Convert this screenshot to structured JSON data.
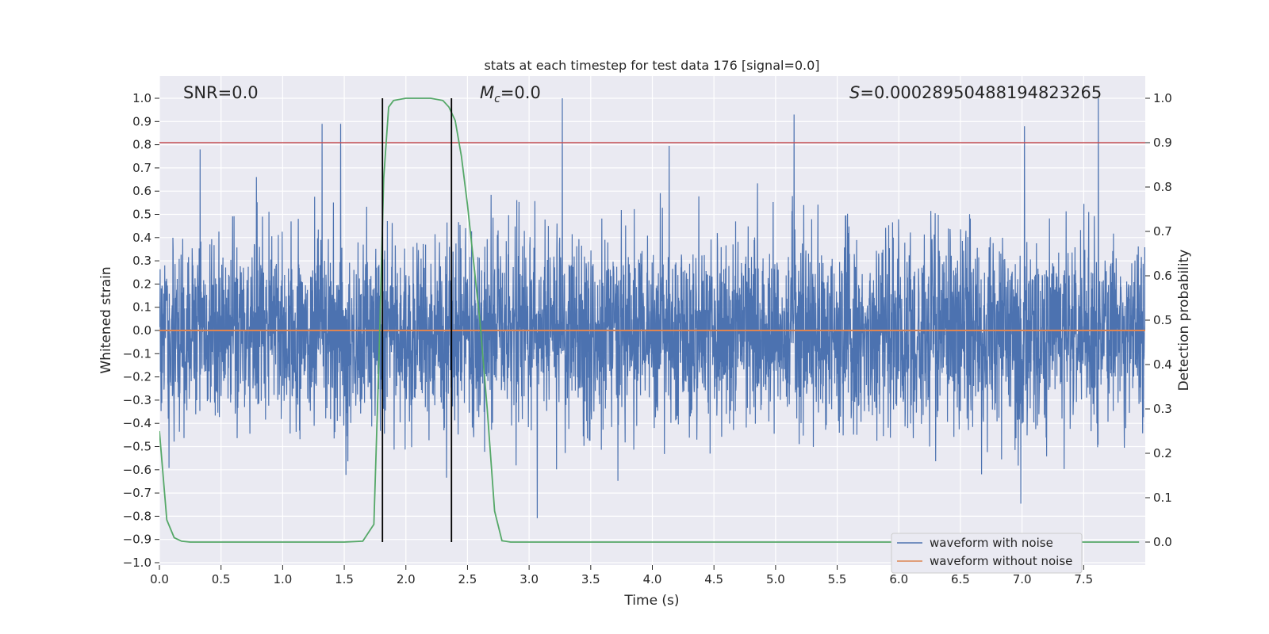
{
  "chart_data": {
    "type": "line",
    "title": "stats at each timestep for test data 176 [signal=0.0]",
    "xlabel": "Time (s)",
    "ylabel": "Whitened strain",
    "ylabel_right": "Detection probability",
    "xlim": [
      0.0,
      8.0
    ],
    "ylim": [
      -1.0,
      1.0
    ],
    "ylim_right": [
      -0.04,
      1.04
    ],
    "xticks": [
      "0.0",
      "0.5",
      "1.0",
      "1.5",
      "2.0",
      "2.5",
      "3.0",
      "3.5",
      "4.0",
      "4.5",
      "5.0",
      "5.5",
      "6.0",
      "6.5",
      "7.0",
      "7.5"
    ],
    "yticks": [
      "1.0",
      "0.9",
      "0.8",
      "0.7",
      "0.6",
      "0.5",
      "0.4",
      "0.3",
      "0.2",
      "0.1",
      "0.0",
      "−0.1",
      "−0.2",
      "−0.3",
      "−0.4",
      "−0.5",
      "−0.6",
      "−0.7",
      "−0.8",
      "−0.9",
      "−1.0"
    ],
    "yticks_right": [
      "1.0",
      "0.9",
      "0.8",
      "0.7",
      "0.6",
      "0.5",
      "0.4",
      "0.3",
      "0.2",
      "0.1",
      "0.0"
    ],
    "annotations": {
      "snr": "SNR=0.0",
      "mc_symbol": "M",
      "mc_sub": "c",
      "mc_value": "=0.0",
      "s_symbol": "S",
      "s_value": "=0.00028950488194823265"
    },
    "threshold": {
      "value_right": 0.9,
      "color": "#c44e52"
    },
    "vertical_lines": [
      1.81,
      2.37
    ],
    "series": [
      {
        "name": "waveform with noise",
        "color": "#4c72b0",
        "kind": "noise",
        "samples": 4096,
        "peak_times": [
          0.33,
          1.32,
          1.47,
          3.27,
          5.15,
          7.02,
          7.62
        ],
        "peak_values": [
          0.78,
          0.89,
          0.89,
          1.0,
          0.93,
          0.88,
          1.0
        ]
      },
      {
        "name": "waveform without noise",
        "color": "#dd8452",
        "kind": "flat",
        "value": 0.0
      },
      {
        "name": "detection probability",
        "color": "#55a868",
        "axis": "right",
        "x": [
          0.0,
          0.06,
          0.12,
          0.18,
          0.25,
          0.5,
          1.0,
          1.5,
          1.65,
          1.74,
          1.78,
          1.82,
          1.86,
          1.9,
          2.0,
          2.2,
          2.3,
          2.35,
          2.4,
          2.45,
          2.5,
          2.6,
          2.66,
          2.72,
          2.78,
          2.85,
          3.0,
          4.0,
          5.0,
          6.0,
          7.0,
          7.95
        ],
        "y": [
          0.25,
          0.05,
          0.01,
          0.002,
          0.0,
          0.0,
          0.0,
          0.0,
          0.002,
          0.04,
          0.4,
          0.82,
          0.98,
          0.995,
          1.0,
          1.0,
          0.995,
          0.98,
          0.95,
          0.87,
          0.76,
          0.5,
          0.3,
          0.07,
          0.003,
          0.0,
          0.0,
          0.0,
          0.0,
          0.0,
          0.0,
          0.0
        ]
      }
    ],
    "legend": {
      "location": "lower-right",
      "entries": [
        "waveform with noise",
        "waveform without noise"
      ]
    },
    "grid": true
  }
}
